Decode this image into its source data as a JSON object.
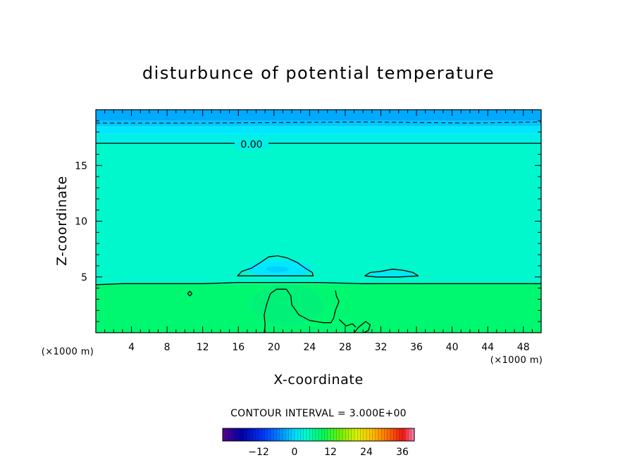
{
  "chart_data": {
    "type": "heatmap",
    "title": "disturbunce of potential temperature",
    "xlabel": "X-coordinate",
    "ylabel": "Z-coordinate",
    "x_unit_left": "(×1000 m)",
    "x_unit_right": "(×1000 m)",
    "xlim": [
      0,
      50
    ],
    "ylim": [
      0,
      20
    ],
    "x_ticks": [
      4,
      8,
      12,
      16,
      20,
      24,
      28,
      32,
      36,
      40,
      44,
      48
    ],
    "y_ticks": [
      5,
      10,
      15
    ],
    "contour_label": "0.00",
    "contour_interval_text": "CONTOUR INTERVAL = 3.000E+00",
    "colorbar": {
      "range": [
        -24,
        40
      ],
      "ticks": [
        -12,
        0,
        12,
        24,
        36
      ]
    },
    "bands": [
      {
        "from": 19.0,
        "to": 20.0,
        "color": "#00aaff"
      },
      {
        "from": 18.5,
        "to": 19.0,
        "color": "#00c8ff"
      },
      {
        "from": 17.8,
        "to": 18.5,
        "color": "#00e8ff"
      },
      {
        "from": 17.0,
        "to": 17.8,
        "color": "#00f0e6"
      },
      {
        "from": 4.4,
        "to": 17.0,
        "color": "#00f8cc"
      },
      {
        "from": 0.0,
        "to": 4.4,
        "color": "#00f870"
      }
    ],
    "contours": [
      {
        "style": "solid",
        "points": [
          [
            0,
            17.0
          ],
          [
            50,
            17.0
          ]
        ]
      },
      {
        "style": "dashed",
        "points": [
          [
            0,
            18.8
          ],
          [
            12,
            18.8
          ],
          [
            30,
            18.9
          ],
          [
            42,
            18.8
          ],
          [
            50,
            18.9
          ]
        ]
      },
      {
        "style": "solid",
        "points": [
          [
            0,
            4.3
          ],
          [
            3,
            4.4
          ],
          [
            8,
            4.4
          ],
          [
            12,
            4.4
          ],
          [
            16,
            4.5
          ],
          [
            20,
            4.5
          ],
          [
            25,
            4.5
          ],
          [
            30,
            4.4
          ],
          [
            35,
            4.4
          ],
          [
            42,
            4.4
          ],
          [
            48,
            4.4
          ],
          [
            50,
            4.4
          ]
        ]
      },
      {
        "style": "solid",
        "closed": true,
        "points": [
          [
            15.9,
            5.1
          ],
          [
            16.4,
            5.5
          ],
          [
            17.5,
            5.8
          ],
          [
            18.5,
            6.3
          ],
          [
            19.4,
            6.8
          ],
          [
            20.4,
            6.9
          ],
          [
            21.5,
            6.7
          ],
          [
            22.6,
            6.3
          ],
          [
            23.5,
            5.8
          ],
          [
            24.3,
            5.4
          ],
          [
            24.4,
            5.1
          ],
          [
            22,
            5.1
          ],
          [
            19,
            5.1
          ]
        ]
      },
      {
        "style": "solid",
        "closed": true,
        "points": [
          [
            30.2,
            5.1
          ],
          [
            30.8,
            5.4
          ],
          [
            32.0,
            5.5
          ],
          [
            33.3,
            5.7
          ],
          [
            34.5,
            5.6
          ],
          [
            35.6,
            5.4
          ],
          [
            36.2,
            5.1
          ],
          [
            34,
            5.0
          ],
          [
            31.5,
            5.0
          ]
        ]
      },
      {
        "style": "solid",
        "points": [
          [
            18.9,
            0.0
          ],
          [
            19.0,
            0.7
          ],
          [
            18.9,
            1.6
          ],
          [
            19.2,
            2.6
          ],
          [
            19.6,
            3.5
          ],
          [
            20.3,
            3.9
          ],
          [
            21.4,
            3.9
          ],
          [
            21.9,
            3.3
          ],
          [
            22.0,
            2.5
          ],
          [
            22.8,
            1.6
          ],
          [
            24.0,
            1.1
          ],
          [
            25.5,
            0.9
          ],
          [
            26.4,
            0.9
          ],
          [
            26.7,
            1.3
          ],
          [
            26.9,
            2.0
          ],
          [
            27.3,
            2.8
          ],
          [
            27.0,
            3.3
          ],
          [
            26.9,
            3.8
          ]
        ]
      },
      {
        "style": "solid",
        "points": [
          [
            29.0,
            0.0
          ],
          [
            29.5,
            0.5
          ],
          [
            30.3,
            1.0
          ],
          [
            30.8,
            0.7
          ],
          [
            30.6,
            0.2
          ],
          [
            30.1,
            0.0
          ]
        ]
      },
      {
        "style": "solid",
        "points": [
          [
            27.3,
            1.2
          ],
          [
            28.1,
            0.6
          ],
          [
            28.8,
            0.8
          ],
          [
            29.2,
            0.5
          ]
        ]
      },
      {
        "style": "solid",
        "closed": true,
        "points": [
          [
            10.3,
            3.5
          ],
          [
            10.55,
            3.72
          ],
          [
            10.8,
            3.5
          ],
          [
            10.55,
            3.3
          ]
        ]
      }
    ],
    "blobs": [
      {
        "cx": 20.6,
        "cy": 5.75,
        "rx": 3.6,
        "ry": 0.8,
        "color": "#00e8ff"
      },
      {
        "cx": 20.4,
        "cy": 5.7,
        "rx": 1.3,
        "ry": 0.25,
        "color": "#00d0ff"
      },
      {
        "cx": 33.2,
        "cy": 5.3,
        "rx": 2.6,
        "ry": 0.28,
        "color": "#00e8f4"
      },
      {
        "cx": 21.5,
        "cy": 2.5,
        "rx": 4.0,
        "ry": 1.8,
        "color": "#00f078"
      }
    ]
  }
}
